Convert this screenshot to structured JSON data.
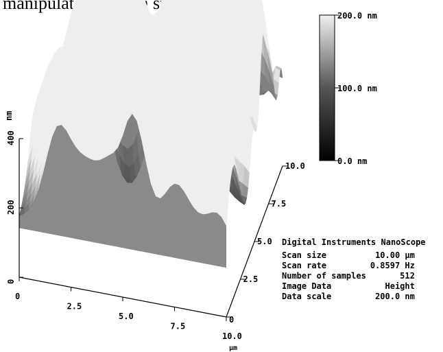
{
  "caption": "manipulator in 1 μm step.",
  "chart_data": {
    "type": "surface3d",
    "x_ticks": [
      "0",
      "2.5",
      "5.0",
      "7.5",
      "10.0"
    ],
    "y_ticks": [
      "0",
      "2.5",
      "5.0",
      "7.5",
      "10.0"
    ],
    "z_ticks": [
      "0",
      "200",
      "400"
    ],
    "x_unit": "µm",
    "z_unit": "nm",
    "xlim": [
      0,
      10
    ],
    "ylim": [
      0,
      10
    ],
    "zlim": [
      0,
      400
    ],
    "colorbar": {
      "labels": [
        "200.0 nm",
        "100.0 nm",
        "0.0 nm"
      ],
      "range": [
        0,
        200
      ]
    }
  },
  "info": {
    "header": "Digital Instruments NanoScope",
    "rows": [
      {
        "label": "Scan size",
        "value": "10.00 µm"
      },
      {
        "label": "Scan rate",
        "value": "0.8597 Hz"
      },
      {
        "label": "Number of samples",
        "value": "512"
      },
      {
        "label": "Image Data",
        "value": "Height"
      },
      {
        "label": "Data scale",
        "value": "200.0 nm"
      }
    ]
  }
}
